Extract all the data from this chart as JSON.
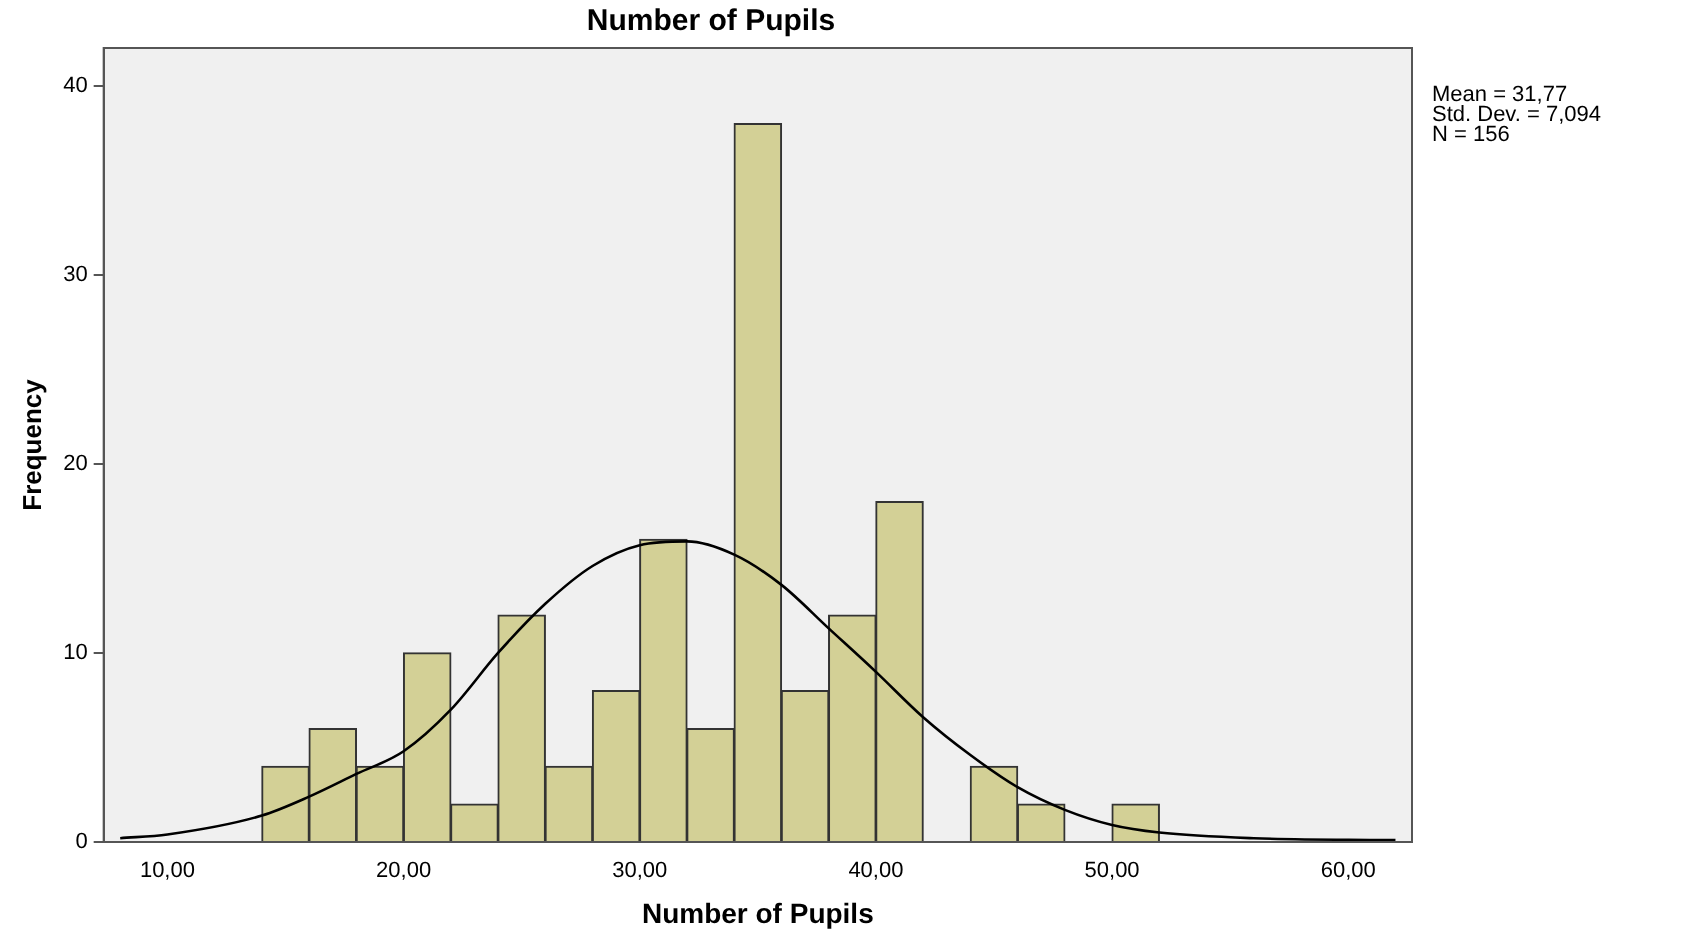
{
  "chart_data": {
    "type": "histogram",
    "title": "Number of Pupils",
    "xlabel": "Number of Pupils",
    "ylabel": "Frequency",
    "bins": [
      14,
      16,
      18,
      20,
      22,
      24,
      26,
      28,
      30,
      32,
      34,
      36,
      38,
      40,
      42,
      44,
      46,
      48,
      50,
      52
    ],
    "values": [
      4,
      6,
      4,
      10,
      2,
      12,
      4,
      8,
      16,
      6,
      38,
      8,
      12,
      18,
      0,
      4,
      2,
      0,
      2
    ],
    "color": "#d3d096",
    "series": [
      {
        "type": "line",
        "color": "#000000",
        "x": [
          8,
          10,
          14,
          16,
          18,
          20,
          22,
          24,
          26,
          28,
          30,
          32,
          34,
          36,
          38,
          40,
          42,
          44,
          46,
          48,
          50,
          52,
          56,
          62
        ],
        "values": [
          0.2,
          0.4,
          1.4,
          2.4,
          3.6,
          4.8,
          7,
          10,
          12.6,
          14.6,
          15.7,
          15.9,
          15.2,
          13.6,
          11.3,
          9,
          6.6,
          4.6,
          2.9,
          1.7,
          0.9,
          0.5,
          0.2,
          0.1
        ]
      }
    ],
    "xlim": [
      7.3,
      62.7
    ],
    "xticks": [
      {
        "value": 10,
        "label": "10,00"
      },
      {
        "value": 20,
        "label": "20,00"
      },
      {
        "value": 30,
        "label": "30,00"
      },
      {
        "value": 40,
        "label": "40,00"
      },
      {
        "value": 50,
        "label": "50,00"
      },
      {
        "value": 60,
        "label": "60,00"
      }
    ],
    "ylim": [
      0,
      42
    ],
    "yticks": [
      0,
      10,
      20,
      30,
      40
    ],
    "grid": false,
    "legend": false,
    "marker": "none",
    "annotations": [
      "Mean = 31,77",
      "Std. Dev. = 7,094",
      "N = 156"
    ]
  }
}
